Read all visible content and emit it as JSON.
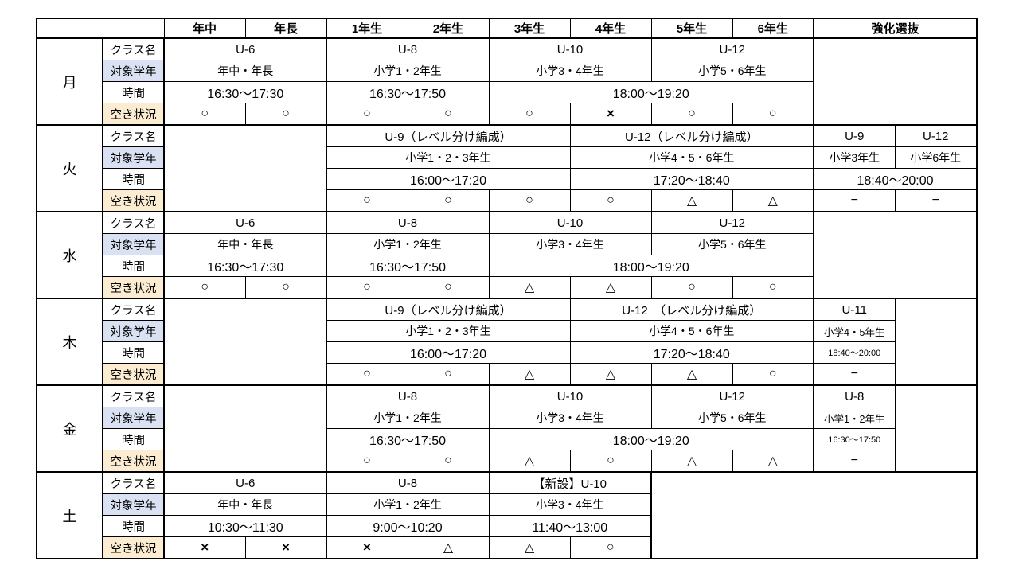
{
  "colors": {
    "grade_row_fill": "#D9E1F2",
    "availability_row_fill": "#FCEDD2",
    "closed_cell_fill": "#D9D9D9",
    "border": "#000000",
    "background": "#FFFFFF"
  },
  "header": {
    "corner": "",
    "grades": [
      "年中",
      "年長",
      "1年生",
      "2年生",
      "3年生",
      "4年生",
      "5年生",
      "6年生"
    ],
    "selection": "強化選抜"
  },
  "row_labels": [
    "クラス名",
    "対象学年",
    "時間",
    "空き状況"
  ],
  "days": [
    {
      "name": "月",
      "rows": [
        [
          {
            "t": "U-6",
            "cs": 2
          },
          {
            "t": "U-8",
            "cs": 2
          },
          {
            "t": "U-10",
            "cs": 2
          },
          {
            "t": "U-12",
            "cs": 2
          },
          {
            "gray": true,
            "cs": 2,
            "rs": 4
          }
        ],
        [
          {
            "t": "年中・年長",
            "cs": 2
          },
          {
            "t": "小学1・2年生",
            "cs": 2
          },
          {
            "t": "小学3・4年生",
            "cs": 2
          },
          {
            "t": "小学5・6年生",
            "cs": 2
          }
        ],
        [
          {
            "t": "16:30〜17:30",
            "cs": 2
          },
          {
            "t": "16:30〜17:50",
            "cs": 2
          },
          {
            "t": "18:00〜19:20",
            "cs": 4
          }
        ],
        [
          {
            "t": "○"
          },
          {
            "t": "○"
          },
          {
            "t": "○"
          },
          {
            "t": "○"
          },
          {
            "t": "○"
          },
          {
            "t": "×",
            "bold": true
          },
          {
            "t": "○"
          },
          {
            "t": "○"
          }
        ]
      ]
    },
    {
      "name": "火",
      "rows": [
        [
          {
            "gray": true,
            "cs": 2,
            "rs": 4
          },
          {
            "t": "U-9（レベル分け編成）",
            "cs": 3
          },
          {
            "t": "U-12（レベル分け編成）",
            "cs": 3
          },
          {
            "t": "U-9"
          },
          {
            "t": "U-12"
          }
        ],
        [
          {
            "t": "小学1・2・3年生",
            "cs": 3
          },
          {
            "t": "小学4・5・6年生",
            "cs": 3
          },
          {
            "t": "小学3年生"
          },
          {
            "t": "小学6年生"
          }
        ],
        [
          {
            "t": "16:00〜17:20",
            "cs": 3
          },
          {
            "t": "17:20〜18:40",
            "cs": 3
          },
          {
            "t": "18:40〜20:00",
            "cs": 2
          }
        ],
        [
          {
            "t": "○"
          },
          {
            "t": "○"
          },
          {
            "t": "○"
          },
          {
            "t": "○"
          },
          {
            "t": "△"
          },
          {
            "t": "△"
          },
          {
            "t": "−"
          },
          {
            "t": "−"
          }
        ]
      ]
    },
    {
      "name": "水",
      "rows": [
        [
          {
            "t": "U-6",
            "cs": 2
          },
          {
            "t": "U-8",
            "cs": 2
          },
          {
            "t": "U-10",
            "cs": 2
          },
          {
            "t": "U-12",
            "cs": 2
          },
          {
            "gray": true,
            "cs": 2,
            "rs": 4
          }
        ],
        [
          {
            "t": "年中・年長",
            "cs": 2
          },
          {
            "t": "小学1・2年生",
            "cs": 2
          },
          {
            "t": "小学3・4年生",
            "cs": 2
          },
          {
            "t": "小学5・6年生",
            "cs": 2
          }
        ],
        [
          {
            "t": "16:30〜17:30",
            "cs": 2
          },
          {
            "t": "16:30〜17:50",
            "cs": 2
          },
          {
            "t": "18:00〜19:20",
            "cs": 4
          }
        ],
        [
          {
            "t": "○"
          },
          {
            "t": "○"
          },
          {
            "t": "○"
          },
          {
            "t": "○"
          },
          {
            "t": "△"
          },
          {
            "t": "△"
          },
          {
            "t": "○"
          },
          {
            "t": "○"
          }
        ]
      ]
    },
    {
      "name": "木",
      "rows": [
        [
          {
            "gray": true,
            "cs": 2,
            "rs": 4
          },
          {
            "t": "U-9（レベル分け編成）",
            "cs": 3
          },
          {
            "t": "U-12　（レベル分け編成）",
            "cs": 3
          },
          {
            "t": "U-11"
          },
          {
            "gray": true,
            "rs": 4
          }
        ],
        [
          {
            "t": "小学1・2・3年生",
            "cs": 3
          },
          {
            "t": "小学4・5・6年生",
            "cs": 3
          },
          {
            "t": "小学4・5年生",
            "fit": true
          }
        ],
        [
          {
            "t": "16:00〜17:20",
            "cs": 3
          },
          {
            "t": "17:20〜18:40",
            "cs": 3
          },
          {
            "t": "18:40〜20:00",
            "small": true
          }
        ],
        [
          {
            "t": "○"
          },
          {
            "t": "○"
          },
          {
            "t": "△"
          },
          {
            "t": "△"
          },
          {
            "t": "△"
          },
          {
            "t": "○"
          },
          {
            "t": "−"
          }
        ]
      ]
    },
    {
      "name": "金",
      "rows": [
        [
          {
            "gray": true,
            "cs": 2,
            "rs": 4
          },
          {
            "t": "U-8",
            "cs": 2
          },
          {
            "t": "U-10",
            "cs": 2
          },
          {
            "t": "U-12",
            "cs": 2
          },
          {
            "t": "U-8"
          },
          {
            "gray": true,
            "rs": 4
          }
        ],
        [
          {
            "t": "小学1・2年生",
            "cs": 2
          },
          {
            "t": "小学3・4年生",
            "cs": 2
          },
          {
            "t": "小学5・6年生",
            "cs": 2
          },
          {
            "t": "小学1・2年生",
            "fit": true
          }
        ],
        [
          {
            "t": "16:30〜17:50",
            "cs": 2
          },
          {
            "t": "18:00〜19:20",
            "cs": 4
          },
          {
            "t": "16:30〜17:50",
            "small": true
          }
        ],
        [
          {
            "t": "○"
          },
          {
            "t": "○"
          },
          {
            "t": "△"
          },
          {
            "t": "○"
          },
          {
            "t": "△"
          },
          {
            "t": "△"
          },
          {
            "t": "−"
          }
        ]
      ]
    },
    {
      "name": "土",
      "rows": [
        [
          {
            "t": "U-6",
            "cs": 2
          },
          {
            "t": "U-8",
            "cs": 2
          },
          {
            "t": "【新設】U-10",
            "cs": 2
          },
          {
            "gray": true,
            "cs": 4,
            "rs": 4,
            "tl": true
          }
        ],
        [
          {
            "t": "年中・年長",
            "cs": 2
          },
          {
            "t": "小学1・2年生",
            "cs": 2
          },
          {
            "t": "小学3・4年生",
            "cs": 2
          }
        ],
        [
          {
            "t": "10:30〜11:30",
            "cs": 2
          },
          {
            "t": "9:00〜10:20",
            "cs": 2
          },
          {
            "t": "11:40〜13:00",
            "cs": 2
          }
        ],
        [
          {
            "t": "×",
            "bold": true
          },
          {
            "t": "×",
            "bold": true
          },
          {
            "t": "×",
            "bold": true
          },
          {
            "t": "△"
          },
          {
            "t": "△"
          },
          {
            "t": "○"
          }
        ]
      ]
    }
  ]
}
